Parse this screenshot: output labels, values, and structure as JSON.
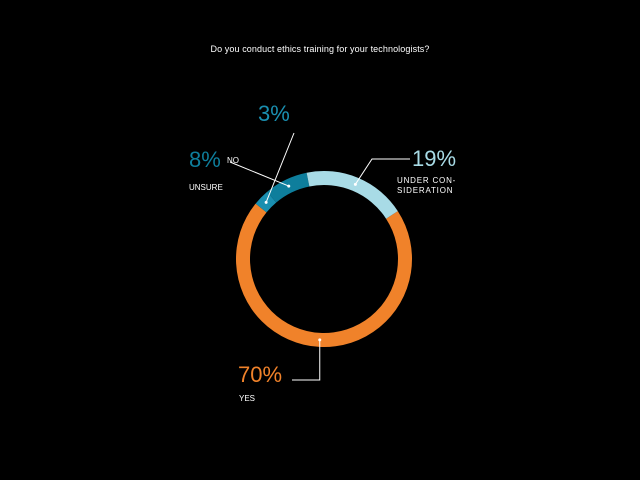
{
  "chart_data": {
    "type": "pie",
    "title": "Do you conduct ethics training for your technologists?",
    "categories": [
      "YES",
      "NO",
      "UNSURE",
      "UNDER CON-SIDERATION"
    ],
    "values": [
      70,
      3,
      8,
      19
    ],
    "value_labels": [
      "70%",
      "3%",
      "8%",
      "19%"
    ],
    "colors": [
      "#f0822a",
      "#1a8fb0",
      "#0e7e9c",
      "#a8dbe6"
    ],
    "legend": "none",
    "grid": false
  }
}
